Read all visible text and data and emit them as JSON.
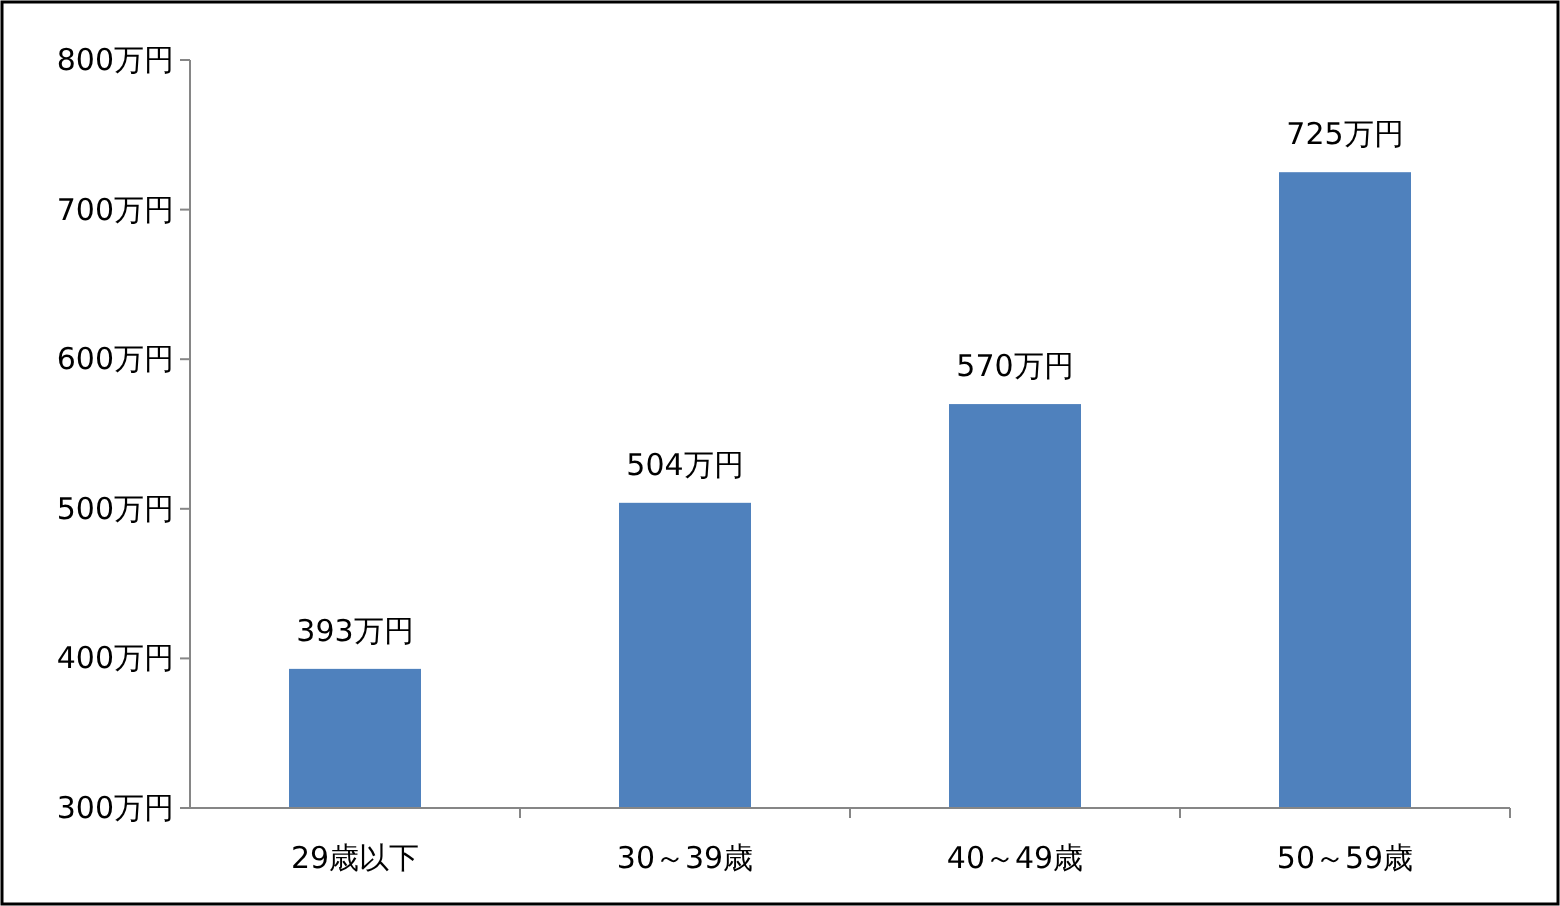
{
  "chart_data": {
    "type": "bar",
    "categories": [
      "29歳以下",
      "30～39歳",
      "40～49歳",
      "50～59歳"
    ],
    "values": [
      393,
      504,
      570,
      725
    ],
    "color": "#4f81bd",
    "value_labels": [
      "393万円",
      "504万円",
      "570万円",
      "725万円"
    ],
    "ylim": [
      300,
      800
    ],
    "yticks": [
      {
        "value": 300,
        "label": "300万円"
      },
      {
        "value": 400,
        "label": "400万円"
      },
      {
        "value": 500,
        "label": "500万円"
      },
      {
        "value": 600,
        "label": "600万円"
      },
      {
        "value": 700,
        "label": "700万円"
      },
      {
        "value": 800,
        "label": "800万円"
      }
    ]
  }
}
